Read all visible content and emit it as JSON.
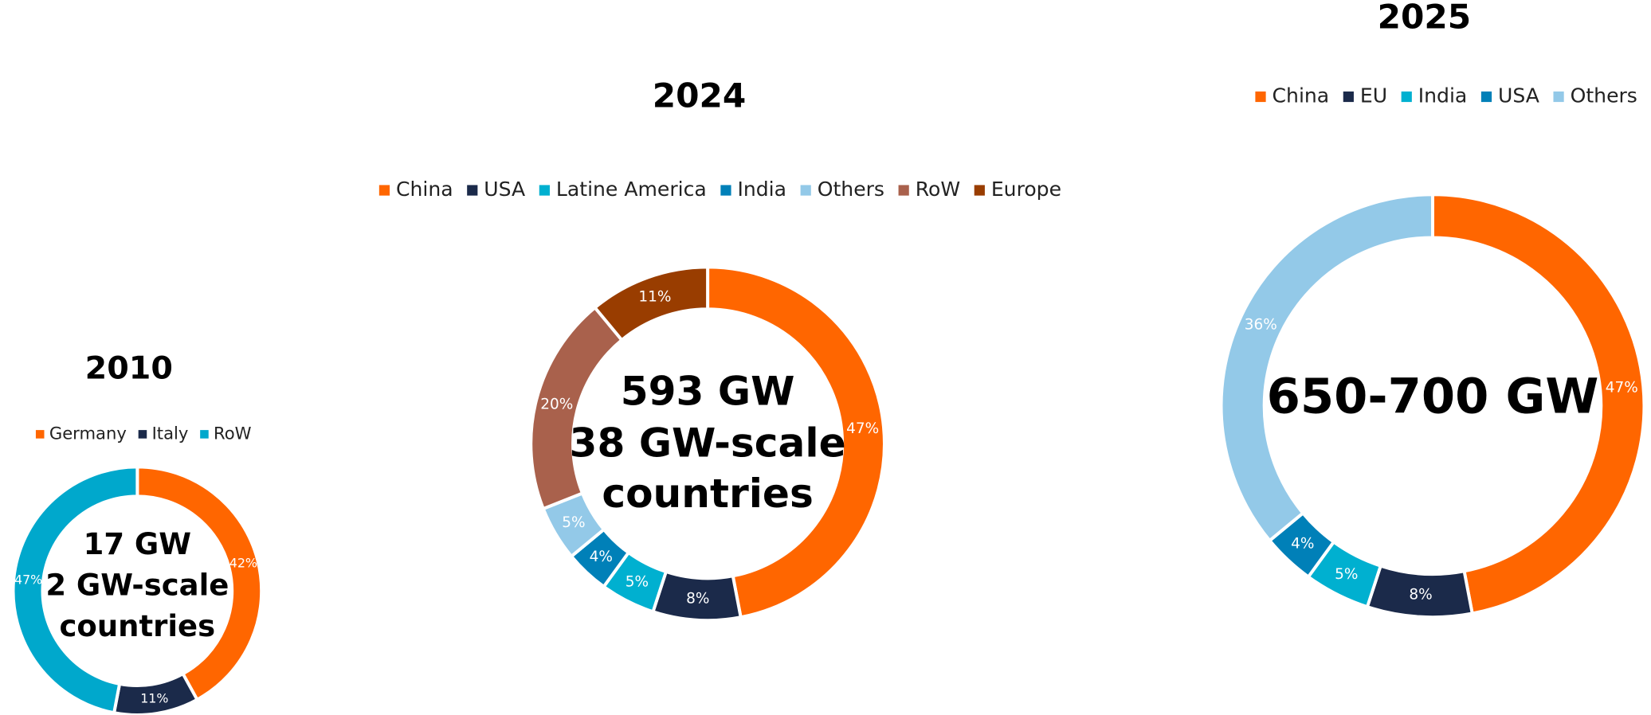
{
  "chart_data": [
    {
      "type": "donut",
      "title": "2010",
      "center_text": [
        "17 GW",
        "2 GW-scale",
        "countries"
      ],
      "categories": [
        "Germany",
        "Italy",
        "RoW"
      ],
      "values": [
        42,
        11,
        47
      ],
      "value_labels": [
        "42%",
        "11%",
        "47%"
      ],
      "colors": [
        "#ff6600",
        "#1b2a4a",
        "#00a8cc"
      ]
    },
    {
      "type": "donut",
      "title": "2024",
      "center_text": [
        "593 GW",
        "38 GW-scale",
        "countries"
      ],
      "categories": [
        "China",
        "USA",
        "Latine America",
        "India",
        "Others",
        "RoW",
        "Europe"
      ],
      "values": [
        47,
        8,
        5,
        4,
        5,
        20,
        11
      ],
      "value_labels": [
        "47%",
        "8%",
        "5%",
        "4%",
        "5%",
        "20%",
        "11%"
      ],
      "colors": [
        "#ff6600",
        "#1b2a4a",
        "#00b0d0",
        "#0080b8",
        "#93c9e8",
        "#a9614c",
        "#993d00"
      ]
    },
    {
      "type": "donut",
      "title": "2025",
      "center_text": [
        "650-700 GW"
      ],
      "categories": [
        "China",
        "EU",
        "India",
        "USA",
        "Others"
      ],
      "values": [
        47,
        8,
        5,
        4,
        36
      ],
      "value_labels": [
        "47%",
        "8%",
        "5%",
        "4%",
        "36%"
      ],
      "colors": [
        "#ff6600",
        "#1b2a4a",
        "#00b0d0",
        "#0080b8",
        "#93c9e8"
      ]
    }
  ]
}
